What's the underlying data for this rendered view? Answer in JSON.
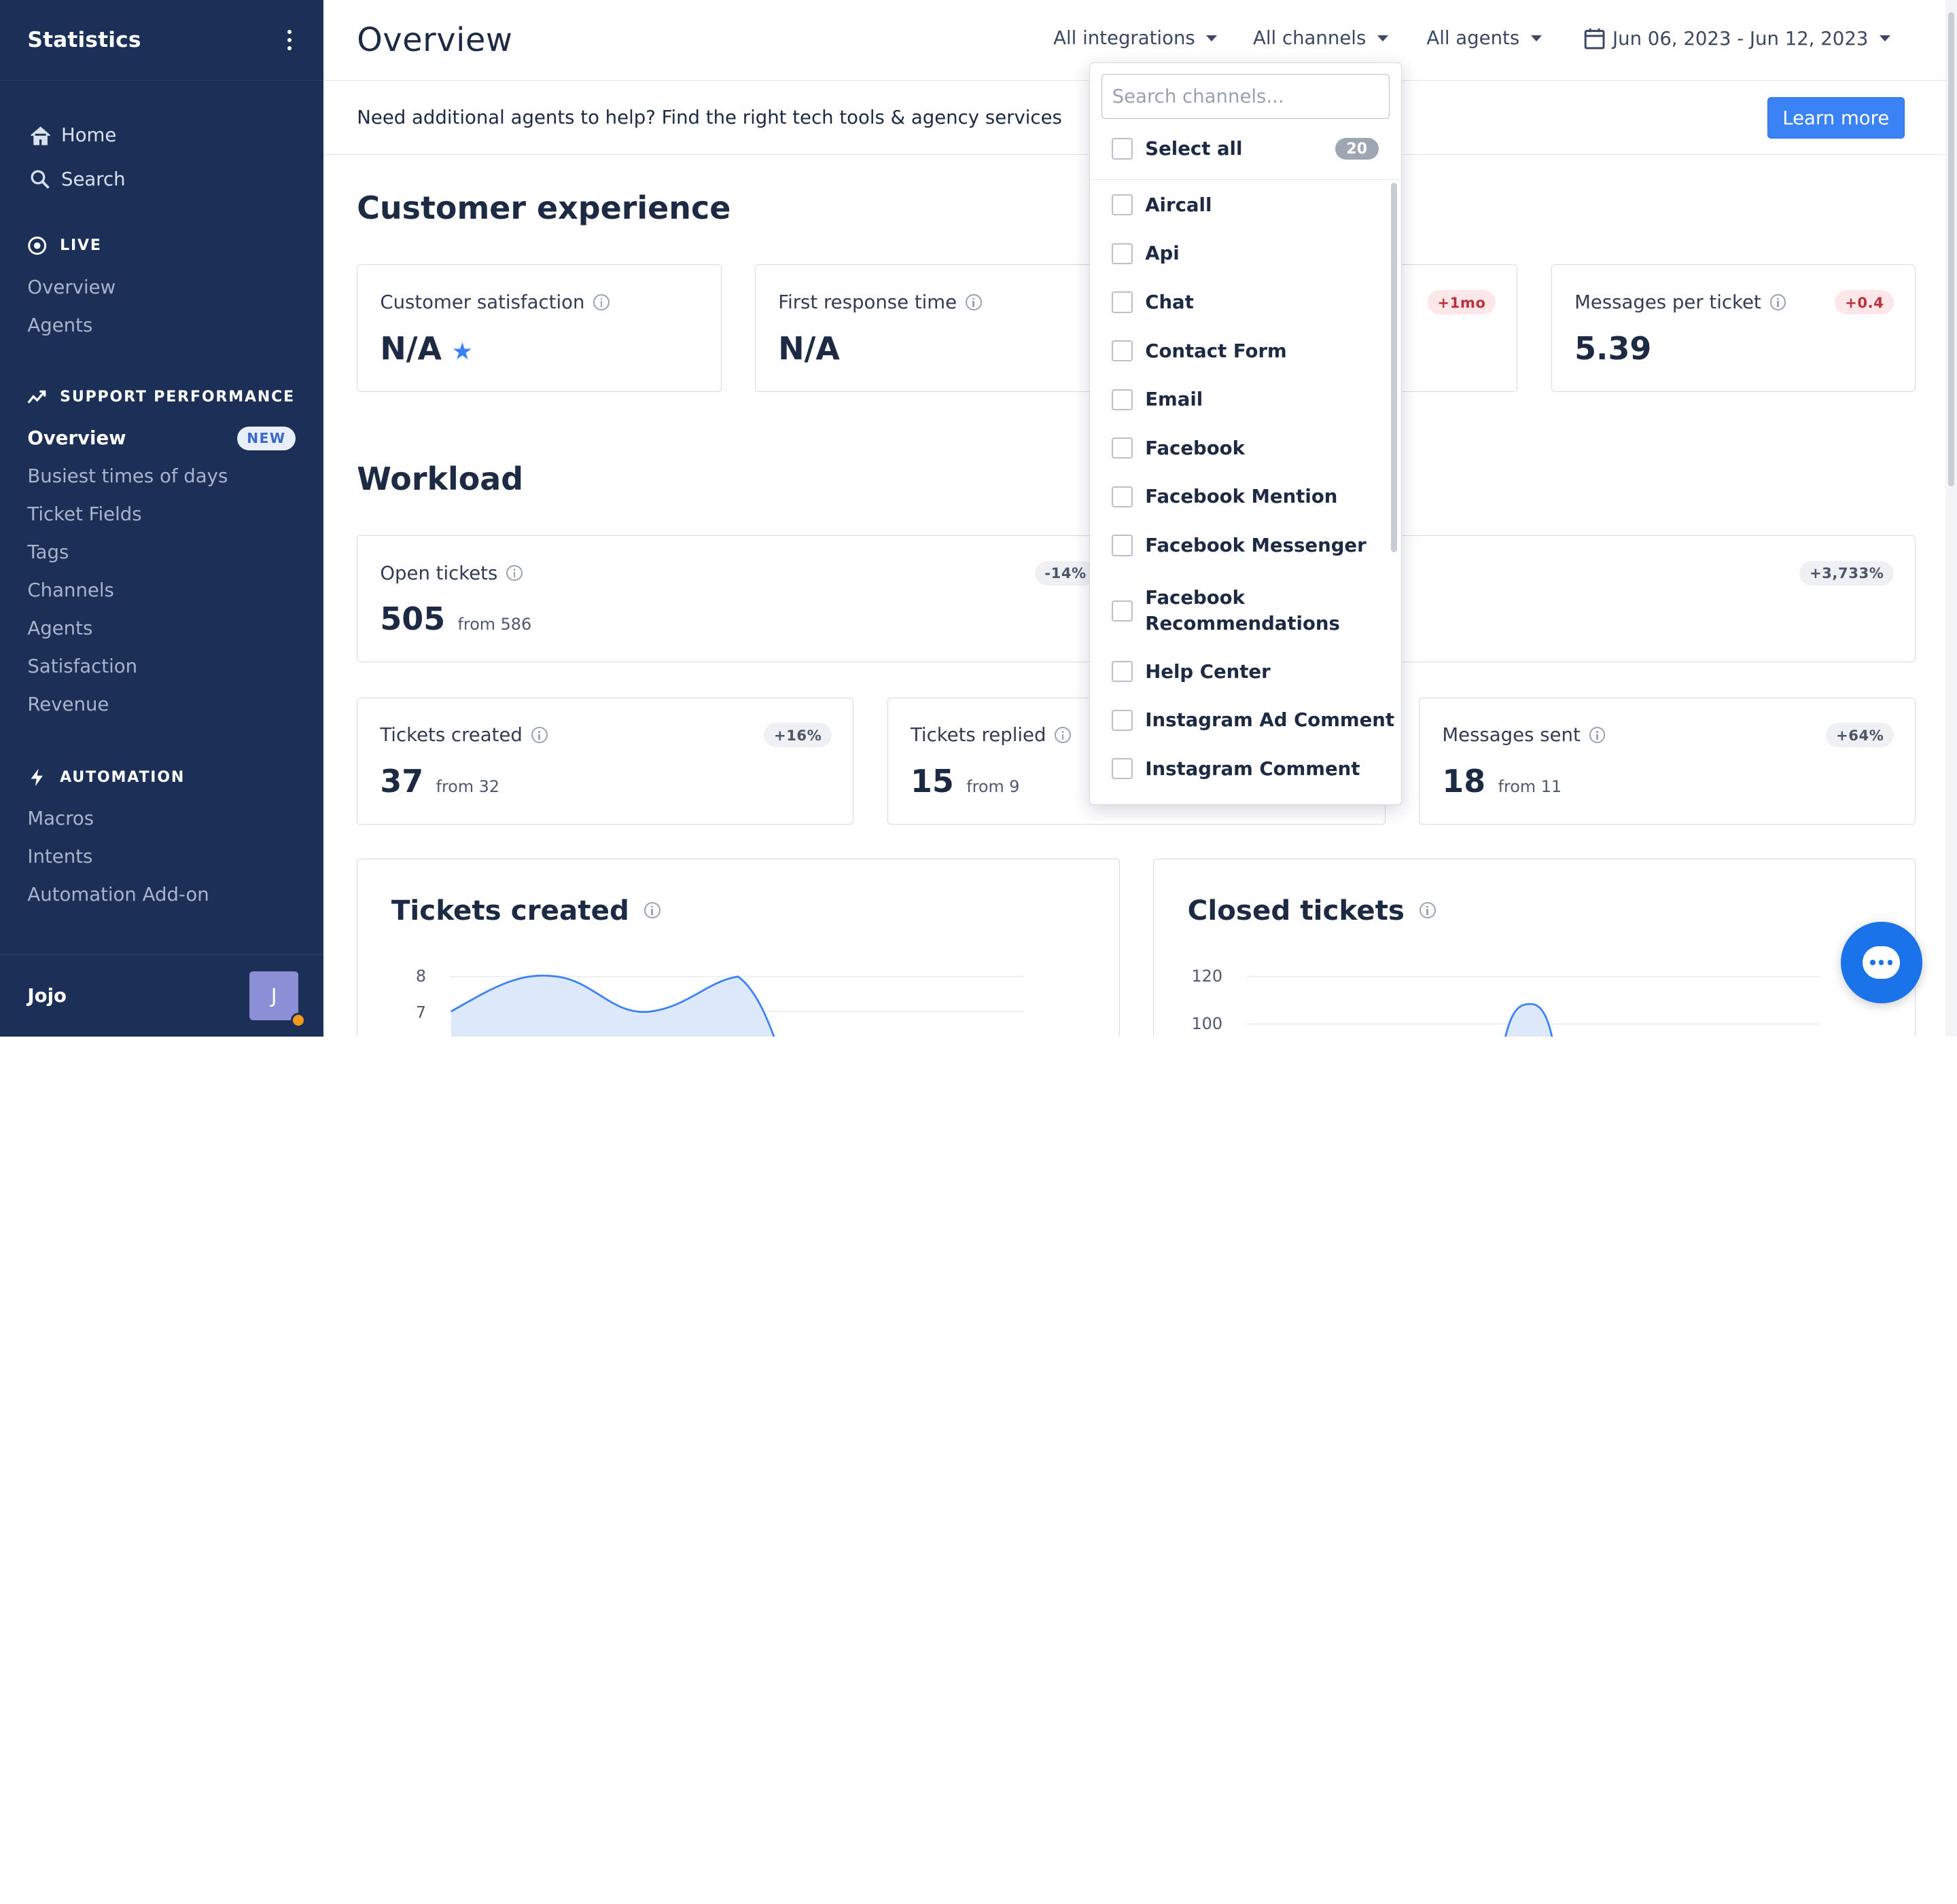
{
  "sidebar": {
    "title": "Statistics",
    "top_links": [
      {
        "label": "Home",
        "icon": "home-icon"
      },
      {
        "label": "Search",
        "icon": "search-icon"
      }
    ],
    "live": {
      "heading": "LIVE",
      "items": [
        {
          "label": "Overview"
        },
        {
          "label": "Agents"
        }
      ]
    },
    "support_performance": {
      "heading": "SUPPORT PERFORMANCE",
      "items": [
        {
          "label": "Overview",
          "active": true,
          "badge": "NEW"
        },
        {
          "label": "Busiest times of days"
        },
        {
          "label": "Ticket Fields"
        },
        {
          "label": "Tags"
        },
        {
          "label": "Channels"
        },
        {
          "label": "Agents"
        },
        {
          "label": "Satisfaction"
        },
        {
          "label": "Revenue"
        }
      ]
    },
    "automation": {
      "heading": "AUTOMATION",
      "items": [
        {
          "label": "Macros"
        },
        {
          "label": "Intents"
        },
        {
          "label": "Automation Add-on"
        }
      ]
    },
    "user": {
      "name": "Jojo",
      "initial": "J",
      "status_color": "#f49a1b"
    }
  },
  "header": {
    "title": "Overview",
    "filters": {
      "integrations": "All integrations",
      "channels": "All channels",
      "agents": "All agents",
      "date_range": "Jun 06, 2023 - Jun 12, 2023"
    }
  },
  "banner": {
    "text": "Need additional agents to help? Find the right tech tools & agency services",
    "button": "Learn more"
  },
  "customer_experience": {
    "title": "Customer experience",
    "cards": [
      {
        "label": "Customer satisfaction",
        "value": "N/A"
      },
      {
        "label": "First response time",
        "value": "N/A"
      },
      {
        "label": "",
        "value": "",
        "delta": "+1mo"
      },
      {
        "label": "Messages per ticket",
        "value": "5.39",
        "delta": "+0.4"
      }
    ]
  },
  "workload": {
    "title": "Workload",
    "cards": [
      {
        "label": "Open tickets",
        "value": "505",
        "from": "from 586",
        "delta": "-14%"
      },
      {
        "label": "",
        "value": "",
        "delta": "+3,733%"
      },
      {
        "label": "Tickets created",
        "value": "37",
        "from": "from 32",
        "delta": "+16%"
      },
      {
        "label": "Tickets replied",
        "value": "15",
        "from": "from 9"
      },
      {
        "label": "Messages sent",
        "value": "18",
        "from": "from 11",
        "delta": "+64%"
      }
    ]
  },
  "charts": [
    {
      "title": "Tickets created",
      "y_ticks": [
        "8",
        "7"
      ]
    },
    {
      "title": "Closed tickets",
      "y_ticks": [
        "120",
        "100"
      ]
    }
  ],
  "chart_data": [
    {
      "type": "area",
      "title": "Tickets created",
      "y_ticks": [
        8,
        7
      ],
      "color": "#3b82f6"
    },
    {
      "type": "area",
      "title": "Closed tickets",
      "y_ticks": [
        120,
        100
      ],
      "color": "#3b82f6"
    }
  ],
  "channel_dropdown": {
    "search_placeholder": "Search channels...",
    "select_all": "Select all",
    "count": "20",
    "options": [
      "Aircall",
      "Api",
      "Chat",
      "Contact Form",
      "Email",
      "Facebook",
      "Facebook Mention",
      "Facebook Messenger",
      "Facebook Recommendations",
      "Help Center",
      "Instagram Ad Comment",
      "Instagram Comment"
    ]
  },
  "colors": {
    "sidebar_bg": "#1c3057",
    "accent": "#3b82f6",
    "negative_delta": "#c0303c"
  }
}
